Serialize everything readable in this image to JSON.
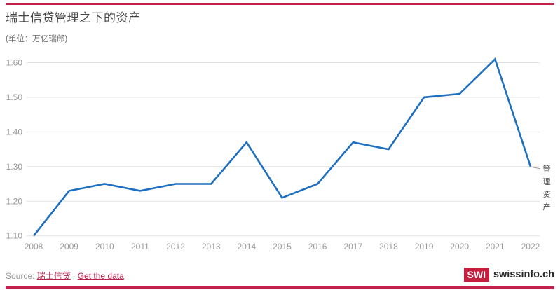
{
  "header": {
    "title": "瑞士信贷管理之下的资产",
    "subtitle": "(单位：万亿瑞郎)"
  },
  "chart_data": {
    "type": "line",
    "title": "瑞士信贷管理之下的资产",
    "unit_note": "(单位：万亿瑞郎)",
    "series_label": "管理资产",
    "categories": [
      "2008",
      "2009",
      "2010",
      "2011",
      "2012",
      "2013",
      "2014",
      "2015",
      "2016",
      "2017",
      "2018",
      "2019",
      "2020",
      "2021",
      "2022"
    ],
    "values": [
      1.1,
      1.23,
      1.25,
      1.23,
      1.25,
      1.25,
      1.37,
      1.21,
      1.25,
      1.37,
      1.35,
      1.5,
      1.51,
      1.61,
      1.3
    ],
    "yticks": [
      1.1,
      1.2,
      1.3,
      1.4,
      1.5,
      1.6
    ],
    "ylim": [
      1.1,
      1.6
    ],
    "grid": true,
    "legend_position": "line-end-right",
    "line_color": "#1f6fc0"
  },
  "colors": {
    "accent_red": "#c2234a",
    "logo_red": "#c41f3e",
    "line_blue": "#1f6fc0",
    "grid_gray": "#e3e3e3",
    "tick_gray": "#989898"
  },
  "footer": {
    "source_label": "Source:",
    "source_link": "瑞士信贷",
    "separator": "·",
    "data_link": "Get the data"
  },
  "logo": {
    "swi": "SWI",
    "domain": "swissinfo.ch"
  }
}
